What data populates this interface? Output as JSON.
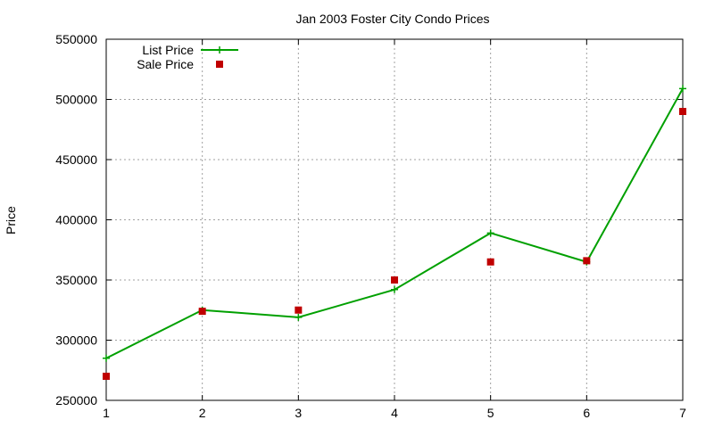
{
  "chart_data": {
    "type": "line",
    "title": "Jan 2003 Foster City Condo Prices",
    "xlabel": "",
    "ylabel": "Price",
    "x": [
      1,
      2,
      3,
      4,
      5,
      6,
      7
    ],
    "xlim": [
      1,
      7
    ],
    "ylim": [
      250000,
      550000
    ],
    "xticks": [
      1,
      2,
      3,
      4,
      5,
      6,
      7
    ],
    "yticks": [
      250000,
      300000,
      350000,
      400000,
      450000,
      500000,
      550000
    ],
    "grid": true,
    "legend_position": "top-left",
    "series": [
      {
        "name": "List Price",
        "style": "line-with-plus-markers",
        "color": "#00a000",
        "values": [
          285000,
          325000,
          319000,
          342000,
          389000,
          365000,
          509000
        ]
      },
      {
        "name": "Sale Price",
        "style": "square-markers",
        "color": "#c00000",
        "values": [
          270000,
          324000,
          325000,
          350000,
          365000,
          366000,
          490000
        ]
      }
    ]
  }
}
